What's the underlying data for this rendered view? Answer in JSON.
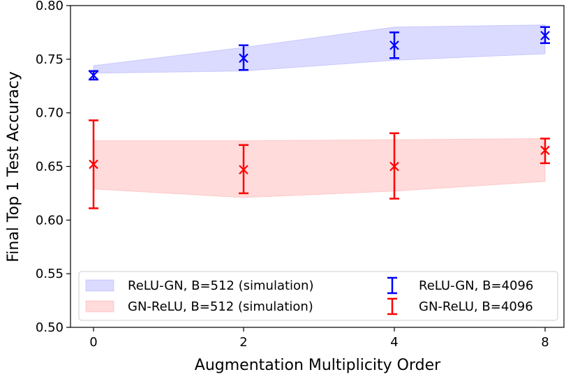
{
  "chart_data": {
    "type": "line",
    "xlabel": "Augmentation Multiplicity Order",
    "ylabel": "Final Top 1 Test Accuracy",
    "categories": [
      "0",
      "2",
      "4",
      "8"
    ],
    "ylim": [
      0.5,
      0.8
    ],
    "yticks": [
      "0.50",
      "0.55",
      "0.60",
      "0.65",
      "0.70",
      "0.75",
      "0.80"
    ],
    "grid": false,
    "legend_position": "bottom",
    "bands": [
      {
        "name": "ReLU-GN, B=512 (simulation)",
        "color": "#0000ff",
        "lower": [
          0.737,
          0.739,
          0.749,
          0.755
        ],
        "upper": [
          0.744,
          0.761,
          0.78,
          0.782
        ]
      },
      {
        "name": "GN-ReLU, B=512 (simulation)",
        "color": "#ff0000",
        "lower": [
          0.629,
          0.621,
          0.627,
          0.636
        ],
        "upper": [
          0.674,
          0.674,
          0.675,
          0.676
        ]
      }
    ],
    "series": [
      {
        "name": "ReLU-GN, B=4096",
        "color": "#0000ff",
        "values": [
          0.735,
          0.751,
          0.763,
          0.772
        ],
        "err_low": [
          0.731,
          0.74,
          0.751,
          0.765
        ],
        "err_high": [
          0.739,
          0.763,
          0.775,
          0.78
        ]
      },
      {
        "name": "GN-ReLU, B=4096",
        "color": "#ff0000",
        "values": [
          0.652,
          0.647,
          0.65,
          0.665
        ],
        "err_low": [
          0.611,
          0.625,
          0.62,
          0.653
        ],
        "err_high": [
          0.693,
          0.67,
          0.681,
          0.676
        ]
      }
    ]
  }
}
